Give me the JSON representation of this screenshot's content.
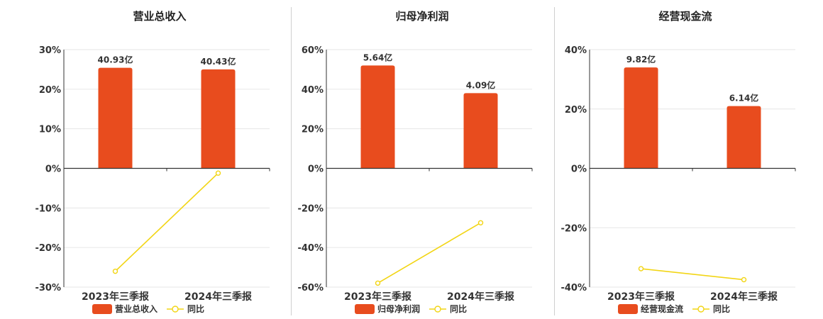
{
  "colors": {
    "bar": "#e84c1e",
    "line": "#f2d514",
    "grid": "#e6e6e6",
    "axis": "#333333"
  },
  "chart_data": [
    {
      "type": "bar",
      "title": "营业总收入",
      "categories": [
        "2023年三季报",
        "2024年三季报"
      ],
      "series": [
        {
          "name": "营业总收入",
          "type": "bar",
          "values": [
            25.4,
            25.0
          ],
          "labels": [
            "40.93亿",
            "40.43亿"
          ]
        },
        {
          "name": "同比",
          "type": "line",
          "values": [
            -26.0,
            -1.2
          ]
        }
      ],
      "ylim": [
        -30,
        30
      ],
      "yticks": [
        30,
        20,
        10,
        0,
        -10,
        -20,
        -30
      ],
      "ytick_labels": [
        "30%",
        "20%",
        "10%",
        "0%",
        "-10%",
        "-20%",
        "-30%"
      ],
      "legend": "bottom"
    },
    {
      "type": "bar",
      "title": "归母净利润",
      "categories": [
        "2023年三季报",
        "2024年三季报"
      ],
      "series": [
        {
          "name": "归母净利润",
          "type": "bar",
          "values": [
            52.0,
            38.0
          ],
          "labels": [
            "5.64亿",
            "4.09亿"
          ]
        },
        {
          "name": "同比",
          "type": "line",
          "values": [
            -58.0,
            -27.5
          ]
        }
      ],
      "ylim": [
        -60,
        60
      ],
      "yticks": [
        60,
        40,
        20,
        0,
        -20,
        -40,
        -60
      ],
      "ytick_labels": [
        "60%",
        "40%",
        "20%",
        "0%",
        "-20%",
        "-40%",
        "-60%"
      ],
      "legend": "bottom"
    },
    {
      "type": "bar",
      "title": "经营现金流",
      "categories": [
        "2023年三季报",
        "2024年三季报"
      ],
      "series": [
        {
          "name": "经营现金流",
          "type": "bar",
          "values": [
            34.0,
            21.0
          ],
          "labels": [
            "9.82亿",
            "6.14亿"
          ]
        },
        {
          "name": "同比",
          "type": "line",
          "values": [
            -33.8,
            -37.5
          ]
        }
      ],
      "ylim": [
        -40,
        40
      ],
      "yticks": [
        40,
        20,
        0,
        -20,
        -40
      ],
      "ytick_labels": [
        "40%",
        "20%",
        "0%",
        "-20%",
        "-40%"
      ],
      "legend": "bottom"
    }
  ]
}
